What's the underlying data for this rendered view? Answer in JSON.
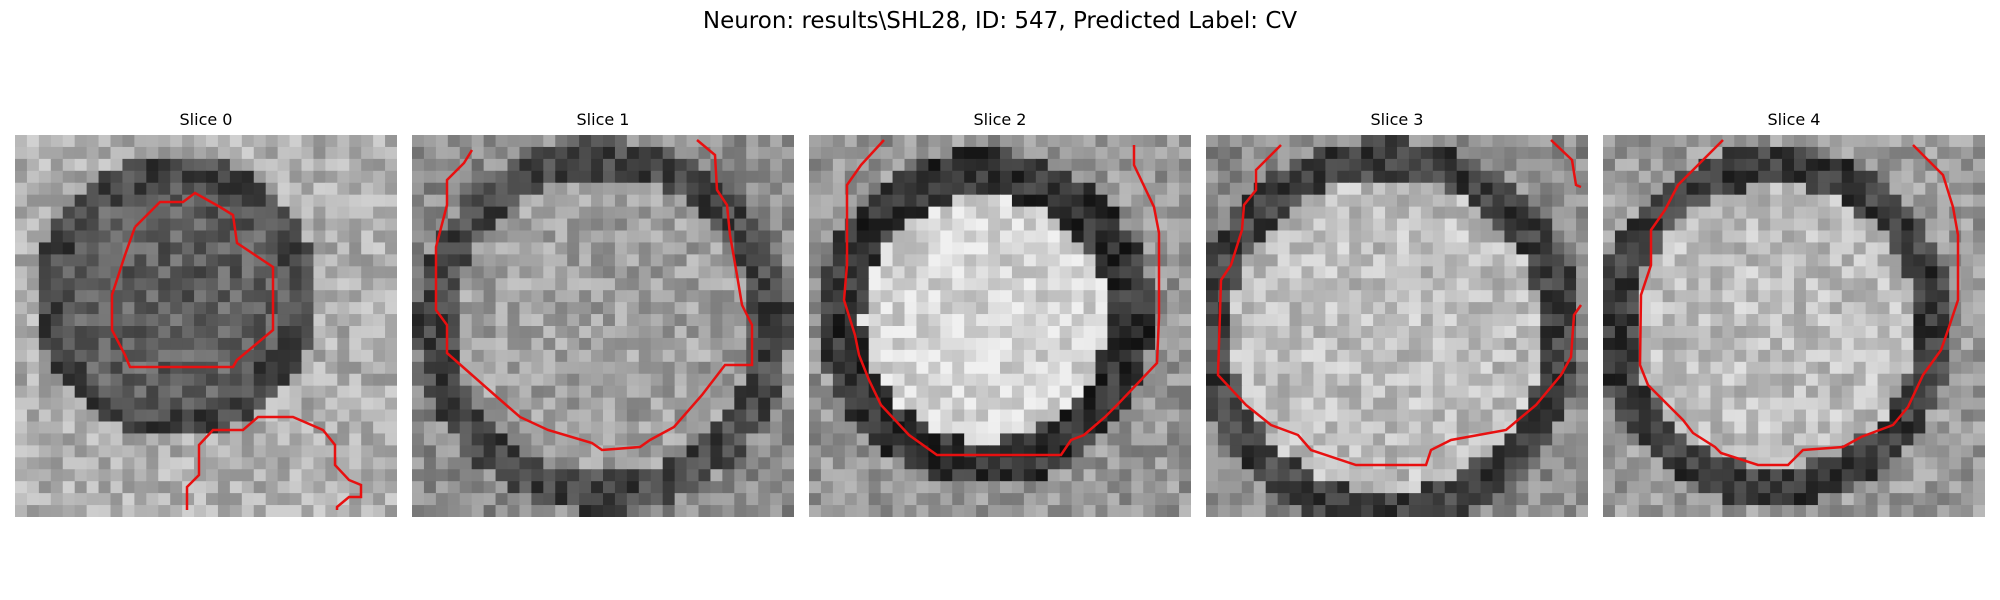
{
  "figure": {
    "title": "Neuron: results\\SHL28, ID: 547, Predicted Label: CV"
  },
  "panels": [
    {
      "title": "Slice 0"
    },
    {
      "title": "Slice 1"
    },
    {
      "title": "Slice 2"
    },
    {
      "title": "Slice 3"
    },
    {
      "title": "Slice 4"
    }
  ],
  "colors": {
    "contour": "#e81010"
  }
}
